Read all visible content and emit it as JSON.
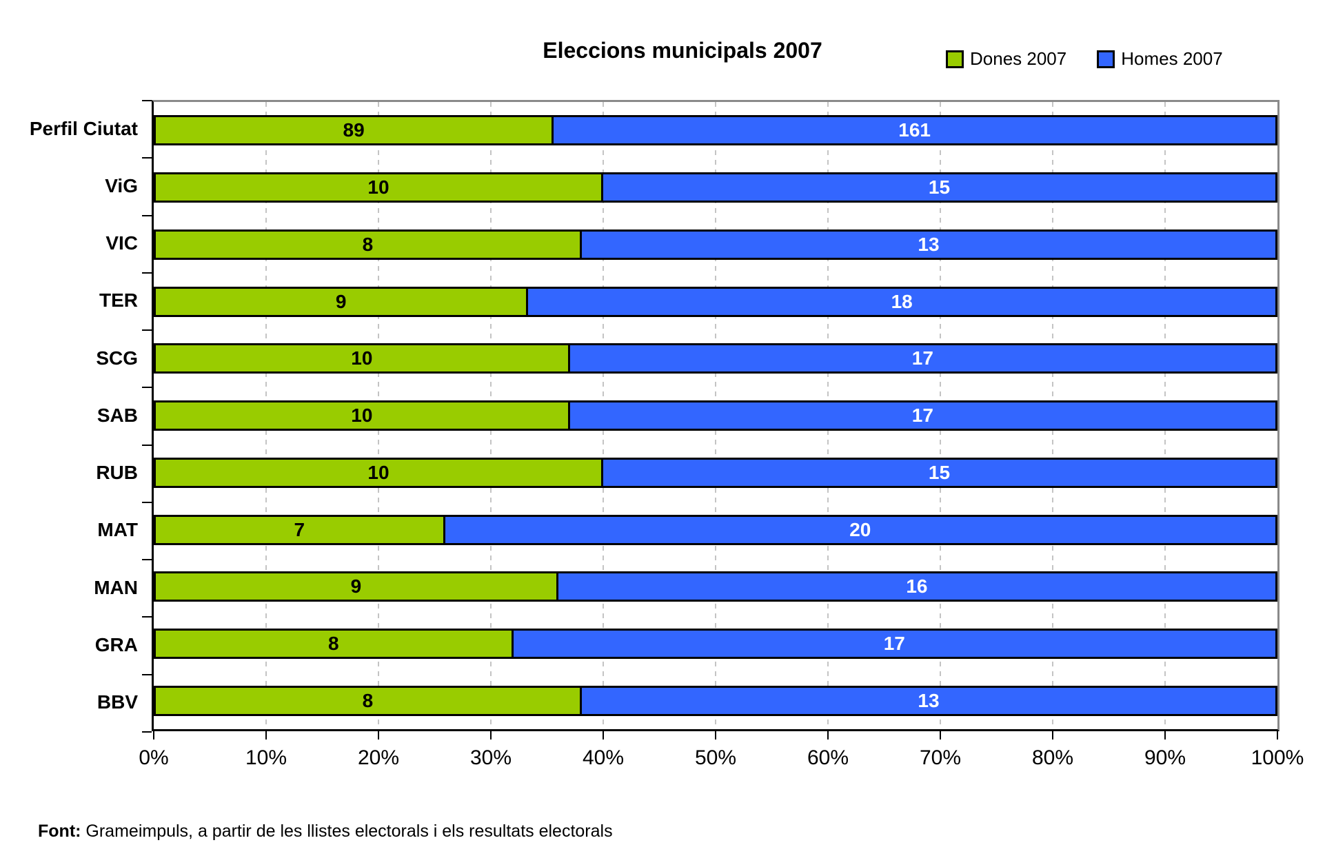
{
  "title": "Eleccions municipals 2007",
  "legend": [
    {
      "label": "Dones 2007",
      "color": "#99CC00"
    },
    {
      "label": "Homes 2007",
      "color": "#3366FF"
    }
  ],
  "chart_data": {
    "type": "bar",
    "subtype": "stacked-100-horizontal",
    "title": "Eleccions municipals 2007",
    "categories": [
      "Perfil Ciutat",
      "ViG",
      "VIC",
      "TER",
      "SCG",
      "SAB",
      "RUB",
      "MAT",
      "MAN",
      "GRA",
      "BBV"
    ],
    "series": [
      {
        "name": "Dones 2007",
        "color": "#99CC00",
        "label_color": "#000000",
        "values": [
          89,
          10,
          8,
          9,
          10,
          10,
          10,
          7,
          9,
          8,
          8
        ]
      },
      {
        "name": "Homes 2007",
        "color": "#3366FF",
        "label_color": "#FFFFFF",
        "values": [
          161,
          15,
          13,
          18,
          17,
          17,
          15,
          20,
          16,
          17,
          13
        ]
      }
    ],
    "x_tick_labels": [
      "0%",
      "10%",
      "20%",
      "30%",
      "40%",
      "50%",
      "60%",
      "70%",
      "80%",
      "90%",
      "100%"
    ],
    "xlim": [
      0,
      100
    ],
    "grid": "vertical-dashed",
    "legend_position": "top-right",
    "gridline_color": "#C4C4C4",
    "bar_border_color": "#000000"
  },
  "footer": {
    "label": "Font:",
    "text": " Grameimpuls, a partir de les llistes electorals i els resultats electorals"
  }
}
